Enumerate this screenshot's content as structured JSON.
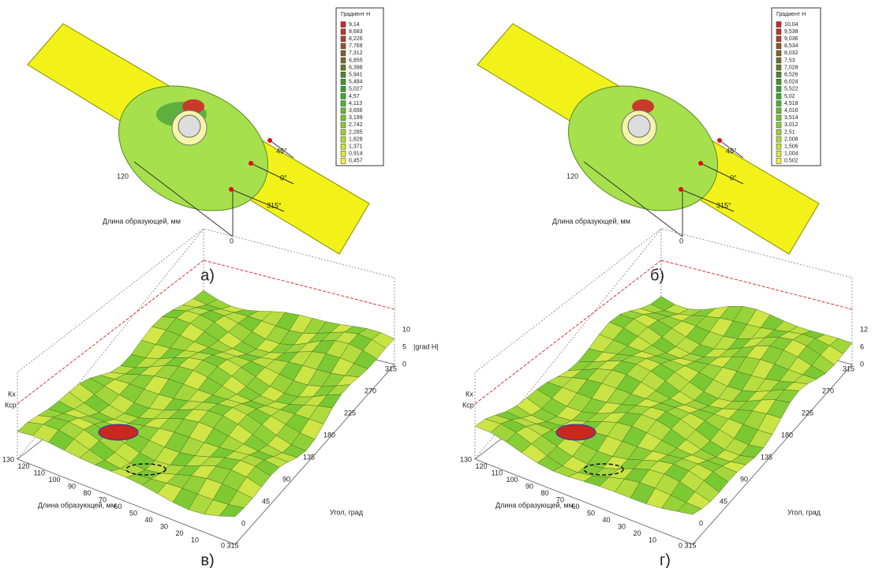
{
  "panels": [
    {
      "caption": "а)",
      "legend": {
        "title": "Градиент Н",
        "values": [
          "9,14",
          "8,683",
          "8,226",
          "7,769",
          "7,312",
          "6,855",
          "6,398",
          "5,941",
          "5,484",
          "5,027",
          "4,57",
          "4,113",
          "3,656",
          "3,199",
          "2,742",
          "2,285",
          "1,828",
          "1,371",
          "0,914",
          "0,457"
        ]
      },
      "labels": [
        "120",
        "Длина образующей, мм",
        "0",
        "45°",
        "0°",
        "315°"
      ]
    },
    {
      "caption": "б)",
      "legend": {
        "title": "Градиент Н",
        "values": [
          "10,04",
          "9,538",
          "9,036",
          "8,534",
          "8,032",
          "7,53",
          "7,028",
          "6,526",
          "6,024",
          "5,522",
          "5,02",
          "4,518",
          "4,016",
          "3,514",
          "3,012",
          "2,51",
          "2,008",
          "1,506",
          "1,004",
          "0,502"
        ]
      },
      "labels": [
        "120",
        "Длина образующей, мм",
        "0",
        "45°",
        "0°",
        "315°"
      ]
    },
    {
      "caption": "в)",
      "markers": [
        "Кх",
        "Кср"
      ],
      "length_ticks": [
        "130",
        "120",
        "110",
        "100",
        "90",
        "80",
        "70",
        "60",
        "50",
        "40",
        "30",
        "20",
        "10"
      ],
      "length_label": "Длина образующей, мм",
      "angle_ticks": [
        "0 315",
        "0",
        "45",
        "90",
        "135",
        "180",
        "225",
        "270",
        "315"
      ],
      "angle_label": "Угол, град",
      "value_ticks": [
        "10",
        "5",
        "0"
      ],
      "value_label": "|grad H|"
    },
    {
      "caption": "г)",
      "markers": [
        "Кх",
        "Кср"
      ],
      "length_ticks": [
        "130",
        "120",
        "110",
        "100",
        "90",
        "80",
        "70",
        "60",
        "50",
        "40",
        "30",
        "20",
        "10"
      ],
      "length_label": "Длина образующей, мм",
      "angle_ticks": [
        "0 315",
        "0",
        "45",
        "90",
        "135",
        "180",
        "225",
        "270",
        "315"
      ],
      "angle_label": "Угол, град",
      "value_ticks": [
        "12",
        "6",
        "0"
      ]
    }
  ]
}
